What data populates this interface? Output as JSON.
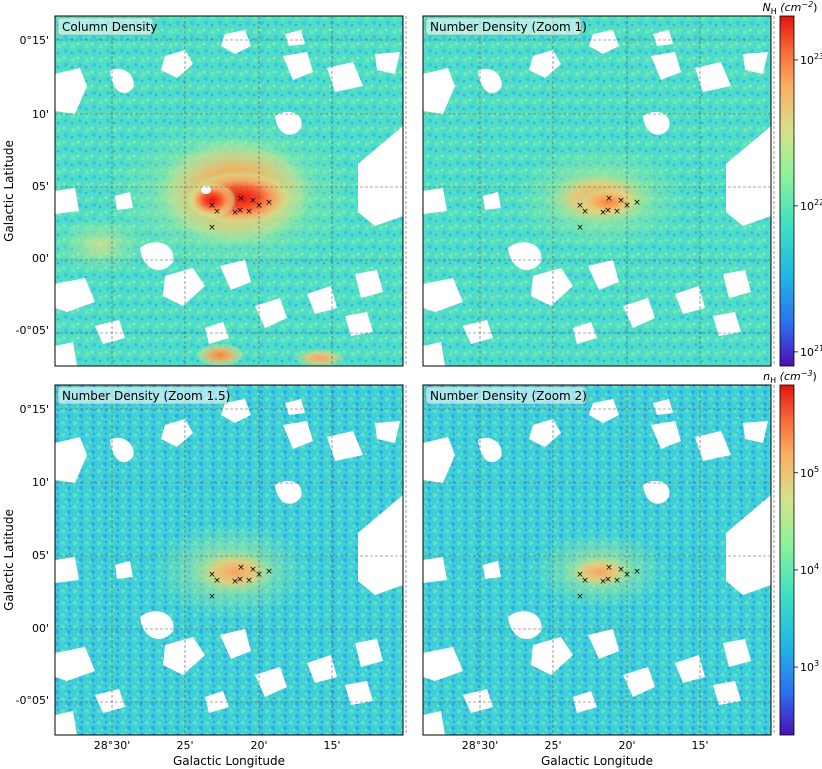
{
  "chart_data": [
    {
      "type": "heatmap",
      "title": "Column Density",
      "xlabel": "",
      "ylabel": "Galactic Latitude",
      "x_ticks": [],
      "y_ticks": [
        "0°15'",
        "10'",
        "05'",
        "00'",
        "-0°05'"
      ],
      "markers": {
        "symbol": "x",
        "count": 10
      }
    },
    {
      "type": "heatmap",
      "title": "Number Density (Zoom 1)",
      "xlabel": "",
      "ylabel": "",
      "x_ticks": [],
      "y_ticks": [],
      "markers": {
        "symbol": "x",
        "count": 10
      }
    },
    {
      "type": "heatmap",
      "title": "Number Density (Zoom 1.5)",
      "xlabel": "Galactic Longitude",
      "ylabel": "Galactic Latitude",
      "x_ticks": [
        "28°30'",
        "25'",
        "20'",
        "15'"
      ],
      "y_ticks": [
        "0°15'",
        "10'",
        "05'",
        "00'",
        "-0°05'"
      ],
      "markers": {
        "symbol": "x",
        "count": 10
      }
    },
    {
      "type": "heatmap",
      "title": "Number Density (Zoom 2)",
      "xlabel": "Galactic Longitude",
      "ylabel": "",
      "x_ticks": [
        "28°30'",
        "25'",
        "20'",
        "15'"
      ],
      "y_ticks": [],
      "markers": {
        "symbol": "x",
        "count": 10
      }
    }
  ],
  "colorbars": {
    "top": {
      "label_main": "N",
      "label_sub": "H",
      "label_unit": " (cm",
      "label_exp": "−2",
      "label_close": ")",
      "scale": "log",
      "range": [
        8e+20,
        2e+23
      ],
      "ticks": [
        {
          "base": "10",
          "exp": "23",
          "value": 1e+23
        },
        {
          "base": "10",
          "exp": "22",
          "value": 1e+22
        },
        {
          "base": "10",
          "exp": "21",
          "value": 1e+21
        }
      ]
    },
    "bottom": {
      "label_main": "n",
      "label_sub": "H",
      "label_unit": " (cm",
      "label_exp": "−3",
      "label_close": ")",
      "scale": "log",
      "range": [
        200,
        800000.0
      ],
      "ticks": [
        {
          "base": "10",
          "exp": "5",
          "value": 100000.0
        },
        {
          "base": "10",
          "exp": "4",
          "value": 10000.0
        },
        {
          "base": "10",
          "exp": "3",
          "value": 1000.0
        }
      ]
    }
  },
  "colormap": [
    "#4b0fb5",
    "#2c6ff0",
    "#21b4e6",
    "#3ee0c0",
    "#8ef39a",
    "#d9e08a",
    "#f8b060",
    "#f86a3a",
    "#e0140f"
  ]
}
